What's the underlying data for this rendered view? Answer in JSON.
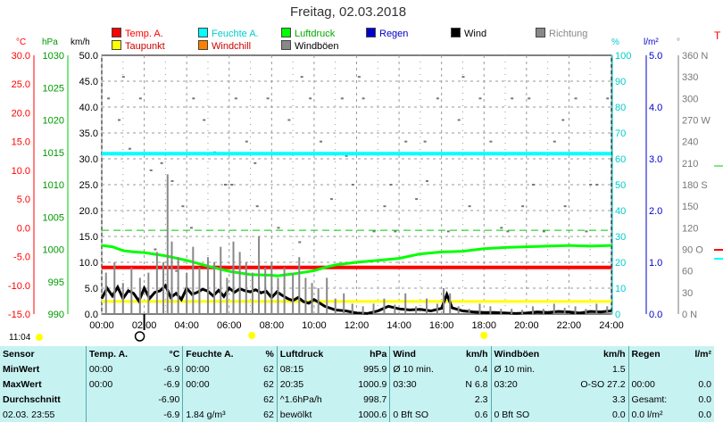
{
  "title": "Freitag, 02.03.2018",
  "colors": {
    "temp": "#ff0000",
    "taupunkt": "#ffff00",
    "feuchte": "#00ffff",
    "windchill": "#ff8000",
    "luftdruck": "#00ff00",
    "windboeen": "#888888",
    "regen": "#0000cc",
    "wind": "#000000",
    "richtung": "#888888"
  },
  "legend": [
    {
      "label": "Temp. A.",
      "color": "#ff0000",
      "text_color": "#ff0000"
    },
    {
      "label": "Feuchte A.",
      "color": "#00ffff",
      "text_color": "#00cccc"
    },
    {
      "label": "Luftdruck",
      "color": "#00ff00",
      "text_color": "#00aa00"
    },
    {
      "label": "Regen",
      "color": "#0000cc",
      "text_color": "#0000cc"
    },
    {
      "label": "Wind",
      "color": "#000000",
      "text_color": "#000000"
    },
    {
      "label": "Richtung",
      "color": "#888888",
      "text_color": "#888888"
    },
    {
      "label": "Taupunkt",
      "color": "#ffff00",
      "text_color": "#cc0000"
    },
    {
      "label": "Windchill",
      "color": "#ff8000",
      "text_color": "#cc0000"
    },
    {
      "label": "Windböen",
      "color": "#888888",
      "text_color": "#000000"
    }
  ],
  "axis_headers": {
    "temp": "°C",
    "hpa": "hPa",
    "kmh": "km/h",
    "pct": "%",
    "rain": "l/m²",
    "dir": "°",
    "extra": "T"
  },
  "chart_data": {
    "type": "line",
    "x_ticks": [
      "00:00",
      "02:00",
      "04:00",
      "06:00",
      "08:00",
      "10:00",
      "12:00",
      "14:00",
      "16:00",
      "18:00",
      "20:00",
      "22:00",
      "24:00"
    ],
    "axes": {
      "temp": {
        "ticks": [
          "30.0",
          "25.0",
          "20.0",
          "15.0",
          "10.0",
          "5.0",
          "0.0",
          "-5.0",
          "-10.0",
          "-15.0"
        ],
        "range": [
          -15,
          30
        ]
      },
      "hpa": {
        "ticks": [
          "1030",
          "1025",
          "1020",
          "1015",
          "1010",
          "1005",
          "1000",
          "995",
          "990"
        ],
        "range": [
          990,
          1030
        ]
      },
      "kmh": {
        "ticks": [
          "50.0",
          "45.0",
          "40.0",
          "35.0",
          "30.0",
          "25.0",
          "20.0",
          "15.0",
          "10.0",
          "5.0",
          "0.0"
        ],
        "range": [
          0,
          50
        ]
      },
      "pct": {
        "ticks": [
          "100",
          "90",
          "80",
          "70",
          "60",
          "50",
          "40",
          "30",
          "20",
          "10",
          "0"
        ],
        "range": [
          0,
          100
        ]
      },
      "rain": {
        "ticks": [
          "5.0",
          "4.0",
          "3.0",
          "2.0",
          "1.0",
          "0.0"
        ],
        "range": [
          0,
          5
        ]
      },
      "dir": {
        "ticks": [
          "360 N",
          "330",
          "300",
          "270 W",
          "240",
          "210",
          "180 S",
          "150",
          "120",
          "90 O",
          "60",
          "30",
          "0 N"
        ],
        "range": [
          0,
          360
        ]
      }
    },
    "series": [
      {
        "name": "Temp. A.",
        "axis": "temp",
        "color": "#ff0000",
        "width": 4,
        "x": [
          0,
          24
        ],
        "y": [
          -6.9,
          -6.9
        ]
      },
      {
        "name": "Taupunkt",
        "axis": "temp",
        "color": "#ffff00",
        "width": 3,
        "x": [
          0,
          24
        ],
        "y": [
          -12.8,
          -12.8
        ]
      },
      {
        "name": "Feuchte A.",
        "axis": "pct",
        "color": "#00ffff",
        "width": 4,
        "x": [
          0,
          24
        ],
        "y": [
          62,
          62
        ]
      },
      {
        "name": "Luftdruck",
        "axis": "hpa",
        "color": "#00ff00",
        "width": 3,
        "x": [
          0,
          0.5,
          1,
          1.5,
          2,
          3,
          4,
          5,
          6,
          7,
          8,
          8.25,
          9,
          10,
          10.5,
          11,
          12,
          13,
          14,
          15,
          16,
          17,
          18,
          19,
          20,
          21,
          22,
          23,
          24
        ],
        "y": [
          1000.6,
          1000.4,
          999.8,
          999.6,
          999.5,
          999.0,
          998.3,
          997.4,
          996.6,
          996.1,
          996.0,
          995.9,
          996.2,
          996.7,
          997.2,
          997.6,
          998.0,
          998.3,
          998.6,
          999.3,
          999.6,
          999.7,
          1000.1,
          1000.3,
          1000.4,
          1000.5,
          1000.6,
          1000.5,
          1000.6
        ]
      },
      {
        "name": "Wind",
        "axis": "kmh",
        "color": "#000000",
        "width": 3,
        "x": [
          0,
          0.25,
          0.5,
          0.75,
          1,
          1.25,
          1.5,
          1.75,
          2,
          2.25,
          2.5,
          2.75,
          3,
          3.25,
          3.5,
          3.75,
          4,
          4.25,
          4.5,
          4.75,
          5,
          5.25,
          5.5,
          5.75,
          6,
          6.25,
          6.5,
          6.75,
          7,
          7.25,
          7.5,
          7.75,
          8,
          8.25,
          8.5,
          8.75,
          9,
          9.25,
          9.5,
          9.75,
          10,
          10.5,
          11,
          11.5,
          12,
          12.5,
          13,
          13.5,
          14,
          14.5,
          15,
          15.5,
          16,
          16.25,
          16.5,
          17,
          17.5,
          18,
          18.5,
          19,
          19.5,
          20,
          20.5,
          21,
          21.5,
          22,
          22.5,
          23,
          23.5,
          24
        ],
        "y": [
          3,
          5,
          3.5,
          5.2,
          3,
          4.5,
          4,
          2.5,
          5,
          3,
          4.2,
          4.5,
          5.5,
          3.2,
          4,
          2.8,
          5,
          3.8,
          4.2,
          4.8,
          4.4,
          3.5,
          4.6,
          3.4,
          5,
          4.2,
          4.9,
          4.5,
          4.3,
          4.7,
          4.1,
          4.4,
          3.2,
          4.3,
          3.6,
          3,
          2.6,
          3.2,
          2.4,
          2.1,
          2.8,
          1.5,
          0.8,
          0.6,
          0.2,
          0.1,
          0.6,
          1.5,
          1.0,
          0.8,
          0.9,
          0.6,
          1.1,
          3.8,
          1.2,
          0.6,
          0.4,
          0.3,
          0.3,
          0.2,
          0.1,
          0.2,
          0.4,
          0.3,
          0.5,
          0.4,
          0.2,
          0.5,
          0.4,
          0.6
        ]
      },
      {
        "name": "Windböen",
        "axis": "kmh",
        "color": "#888888",
        "width": 1,
        "bars": true,
        "x": [
          0.2,
          0.6,
          1,
          1.4,
          1.8,
          2.2,
          2.6,
          2.9,
          3.1,
          3.3,
          3.6,
          4,
          4.3,
          4.6,
          5,
          5.3,
          5.6,
          5.9,
          6.2,
          6.5,
          6.8,
          7.1,
          7.4,
          7.7,
          8,
          8.3,
          8.6,
          9,
          9.3,
          9.6,
          9.9,
          10.2,
          10.6,
          11,
          11.4,
          11.8,
          12.3,
          12.8,
          13.3,
          13.8,
          14.3,
          14.8,
          15.3,
          15.8,
          16.1,
          16.4,
          16.8,
          17.3,
          17.8,
          18.3,
          18.8,
          19.3,
          19.8,
          20.3,
          20.8,
          21.3,
          21.8,
          22.3,
          22.8,
          23.3,
          23.8
        ],
        "y": [
          8,
          10,
          6,
          9,
          7,
          8,
          12,
          10,
          27,
          14,
          11,
          8,
          13,
          9,
          11,
          10,
          13,
          7,
          14,
          12,
          10,
          8,
          15,
          9,
          10,
          7,
          9,
          8,
          11,
          7,
          6,
          5,
          7,
          3,
          4,
          2,
          1.5,
          2,
          3,
          1.8,
          4,
          1.5,
          3,
          2,
          5,
          4,
          1.5,
          1,
          2,
          1.5,
          1,
          1,
          0.8,
          1.5,
          1,
          2,
          1.2,
          1.5,
          1,
          2,
          1.5
        ]
      }
    ],
    "direction_dots": {
      "axis": "dir",
      "x": [
        0.3,
        0.8,
        1.3,
        1.8,
        2.3,
        2.8,
        3.3,
        3.8,
        4.3,
        4.8,
        5.3,
        5.8,
        6.3,
        6.8,
        7.3,
        7.8,
        8.3,
        8.8,
        9.3,
        9.8,
        10.3,
        10.8,
        11.3,
        11.8,
        12.3,
        12.8,
        13.3,
        13.8,
        14.3,
        14.8,
        15.3,
        15.8,
        16.3,
        16.8,
        17.3,
        17.8,
        18.3,
        18.8,
        19.3,
        19.8,
        20.3,
        20.8,
        21.3,
        21.8,
        22.3,
        22.8,
        23.3,
        23.8,
        1.0,
        2.5,
        4.2,
        6.1,
        9.4,
        11.5,
        13.6,
        17.0,
        19.1,
        21.7,
        23.0,
        3.5,
        7.2,
        12.1,
        15.2,
        20.1
      ],
      "y": [
        300,
        270,
        230,
        300,
        200,
        210,
        185,
        150,
        300,
        270,
        225,
        180,
        300,
        240,
        150,
        300,
        120,
        270,
        100,
        300,
        240,
        160,
        300,
        180,
        300,
        115,
        150,
        115,
        240,
        160,
        185,
        300,
        115,
        270,
        150,
        300,
        240,
        120,
        300,
        150,
        180,
        115,
        240,
        150,
        300,
        115,
        180,
        300,
        330,
        90,
        120,
        180,
        330,
        220,
        180,
        330,
        115,
        270,
        180,
        60,
        210,
        330,
        240,
        300
      ]
    },
    "rain": {
      "axis": "rain",
      "x": [],
      "y": []
    }
  },
  "markers": {
    "sunrise": "07:04",
    "sunset": "18:00",
    "current": "02:00"
  },
  "status_time": "11:04",
  "table": {
    "headers": [
      "Sensor",
      "Temp. A.",
      "°C",
      "Feuchte A.",
      "%",
      "Luftdruck",
      "hPa",
      "Wind",
      "km/h",
      "Windböen",
      "km/h",
      "Regen",
      "l/m²"
    ],
    "rows": [
      [
        "MinWert",
        "00:00",
        "-6.9",
        "00:00",
        "62",
        "08:15",
        "995.9",
        "Ø 10 min.",
        "0.4",
        "Ø 10 min.",
        "1.5",
        "",
        ""
      ],
      [
        "MaxWert",
        "00:00",
        "-6.9",
        "00:00",
        "62",
        "20:35",
        "1000.9",
        "03:30",
        "N 6.8",
        "03:20",
        "O-SO 27.2",
        "00:00",
        "0.0"
      ],
      [
        "Durchschnitt",
        "",
        "-6.90",
        "",
        "62",
        "^1.6hPa/h",
        "998.7",
        "",
        "2.3",
        "",
        "3.3",
        "Gesamt:",
        "0.0"
      ],
      [
        "02.03. 23:55",
        "",
        "-6.9",
        "1.84 g/m³",
        "62",
        "bewölkt",
        "1000.6",
        "0 Bft SO",
        "0.6",
        "0 Bft SO",
        "0.0",
        "0.0 l/m²",
        "0.0"
      ]
    ]
  }
}
